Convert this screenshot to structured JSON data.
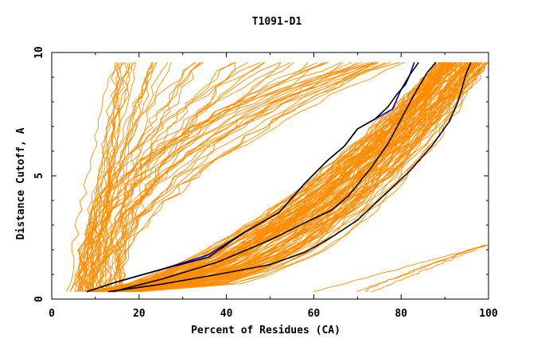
{
  "chart_data": {
    "type": "line",
    "title": "T1091-D1",
    "xlabel": "Percent of Residues (CA)",
    "ylabel": "Distance Cutoff, A",
    "xlim": [
      0,
      100
    ],
    "ylim": [
      0,
      10
    ],
    "xticks": [
      "0",
      "20",
      "40",
      "60",
      "80",
      "100"
    ],
    "yticks": [
      "0",
      "5",
      "10"
    ],
    "grid": false,
    "background_curve_color": "#ff8c00",
    "series": [
      {
        "color": "#0000cc",
        "x": [
          8,
          15,
          25,
          36,
          44,
          52,
          58,
          63,
          67,
          70,
          74,
          78,
          80,
          82,
          83
        ],
        "y": [
          0.3,
          0.7,
          1.2,
          1.8,
          2.7,
          3.5,
          4.7,
          5.6,
          6.2,
          6.9,
          7.3,
          7.7,
          8.5,
          9.1,
          9.6
        ]
      },
      {
        "color": "#000000",
        "x": [
          8,
          15,
          25,
          36,
          44,
          52,
          58,
          63,
          67,
          70,
          74,
          77,
          79,
          81,
          82,
          84
        ],
        "y": [
          0.3,
          0.7,
          1.2,
          1.7,
          2.7,
          3.5,
          4.7,
          5.6,
          6.2,
          6.9,
          7.3,
          7.8,
          8.3,
          8.7,
          9.1,
          9.6
        ]
      },
      {
        "color": "#000000",
        "x": [
          14,
          25,
          38,
          50,
          58,
          64,
          68,
          73,
          77,
          80,
          83,
          86,
          88
        ],
        "y": [
          0.3,
          0.8,
          1.5,
          2.4,
          3.1,
          3.6,
          4.2,
          5.3,
          6.3,
          7.3,
          8.3,
          9.2,
          9.6
        ]
      },
      {
        "color": "#000000",
        "x": [
          13,
          25,
          38,
          50,
          58,
          64,
          70,
          76,
          82,
          87,
          91,
          93,
          94,
          95,
          96
        ],
        "y": [
          0.3,
          0.6,
          1.0,
          1.4,
          1.9,
          2.5,
          3.2,
          4.2,
          5.2,
          6.2,
          7.2,
          8.0,
          8.6,
          9.2,
          9.6
        ]
      }
    ]
  }
}
